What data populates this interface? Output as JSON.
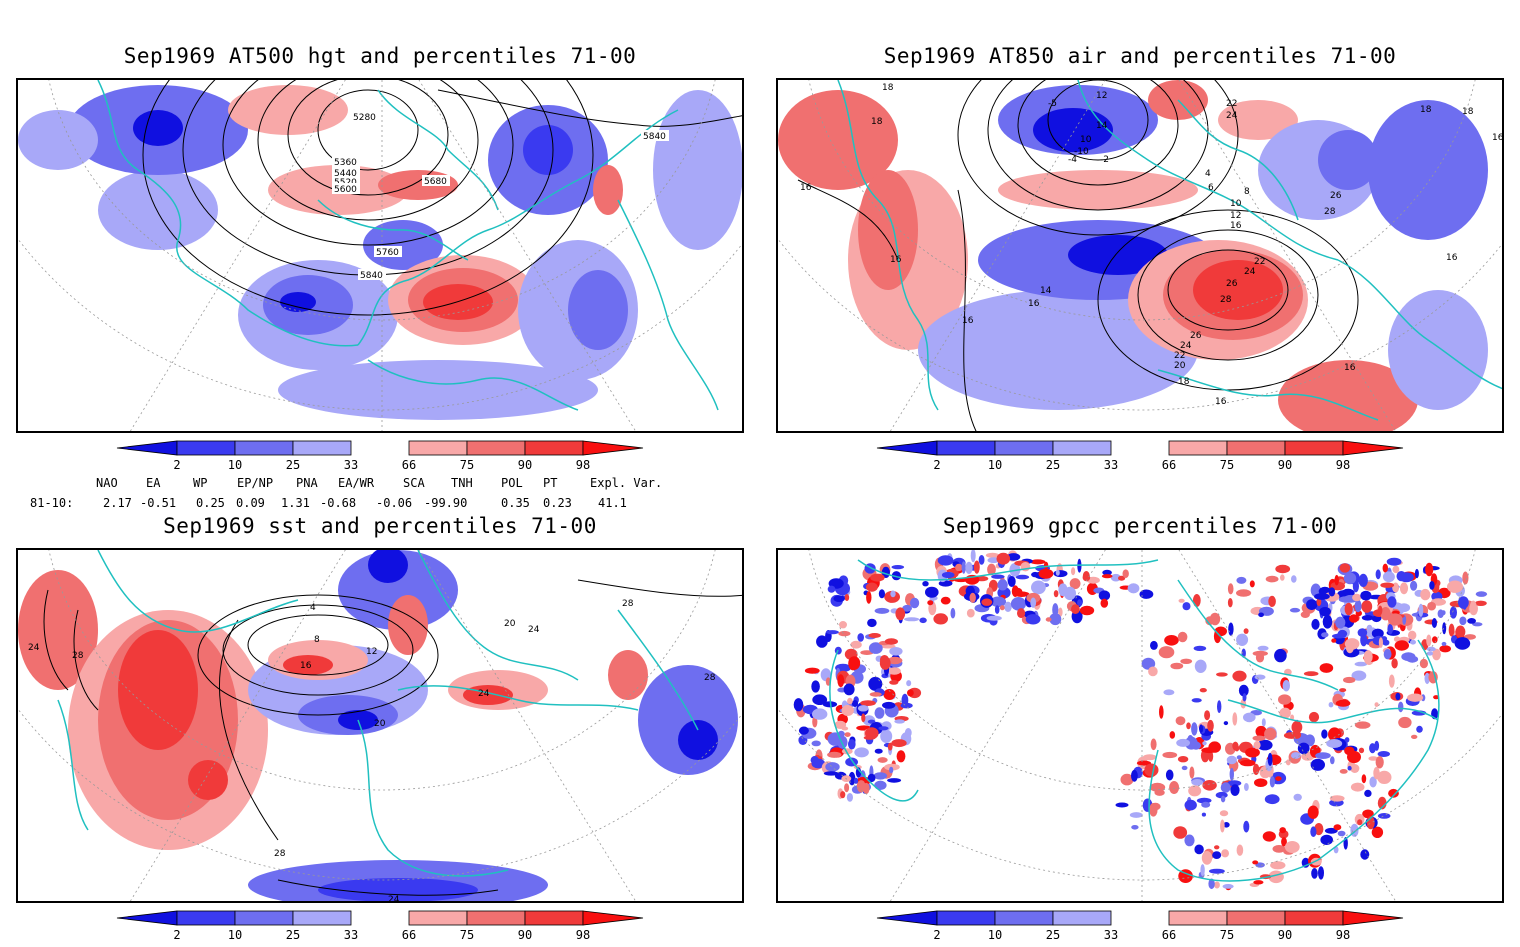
{
  "panels": [
    {
      "id": "tl",
      "title": "Sep1969 AT500 hgt and percentiles 71-00",
      "contour_labels": [
        "5280",
        "5360",
        "5440",
        "5520",
        "5600",
        "5680",
        "5760",
        "5840",
        "5840"
      ]
    },
    {
      "id": "tr",
      "title": "Sep1969 AT850 air and percentiles 71-00",
      "contour_labels": [
        "18",
        "18",
        "16",
        "16",
        "16",
        "16",
        "14",
        "16",
        "18",
        "12",
        "14",
        "10",
        "-4",
        "-2",
        "-5",
        "-10",
        "22",
        "24",
        "4",
        "6",
        "8",
        "10",
        "12",
        "16",
        "22",
        "24",
        "26",
        "28",
        "26",
        "28",
        "26",
        "24",
        "22",
        "20",
        "18",
        "16",
        "18",
        "16",
        "16"
      ]
    },
    {
      "id": "bl",
      "title": "Sep1969 sst and percentiles 71-00",
      "contour_labels": [
        "24",
        "28",
        "4",
        "8",
        "12",
        "16",
        "20",
        "28",
        "28",
        "24",
        "20",
        "24",
        "24",
        "28"
      ]
    },
    {
      "id": "br",
      "title": "Sep1969 gpcc percentiles 71-00",
      "contour_labels": []
    }
  ],
  "colorbar": {
    "ticks": [
      "2",
      "10",
      "25",
      "33",
      "66",
      "75",
      "90",
      "98"
    ],
    "colors": {
      "p2": "#1010e0",
      "p10": "#3a3af0",
      "p25": "#6e6ef0",
      "p33": "#a8a8f8",
      "p66": "#f8a8a8",
      "p75": "#f07070",
      "p90": "#f03a3a",
      "p98": "#f81010"
    }
  },
  "indices": {
    "headers": [
      "NAO",
      "EA",
      "WP",
      "EP/NP",
      "PNA",
      "EA/WR",
      "SCA",
      "TNH",
      "POL",
      "PT",
      "Expl. Var."
    ],
    "row_label": "81-10:",
    "values": [
      "2.17",
      "-0.51",
      "0.25",
      "0.09",
      "1.31",
      "-0.68",
      "-0.06",
      "-99.90",
      "0.35",
      "0.23",
      "41.1"
    ]
  },
  "colors": {
    "coastline": "#20c0c0",
    "contour": "#000000",
    "grid": "#999999"
  }
}
